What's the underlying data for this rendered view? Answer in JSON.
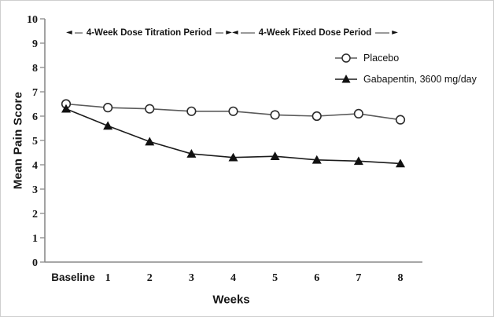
{
  "figure": {
    "background_color": "#ffffff",
    "border_color": "#cfcfcf"
  },
  "chart_data": {
    "type": "line",
    "title": "",
    "xlabel": "Weeks",
    "ylabel": "Mean Pain Score",
    "x_categories": [
      "Baseline",
      "1",
      "2",
      "3",
      "4",
      "5",
      "6",
      "7",
      "8"
    ],
    "ylim": [
      0,
      10
    ],
    "ytick_interval": 1,
    "ytick_labels": [
      "0",
      "1",
      "2",
      "3",
      "4",
      "5",
      "6",
      "7",
      "8",
      "9",
      "10"
    ],
    "grid": false,
    "legend_position": "upper-right",
    "axis_color": "#8a8a8a",
    "text_color": "#161616",
    "series": [
      {
        "name": "Placebo",
        "marker": "open-circle",
        "line_color": "#5a5a5a",
        "marker_fill": "#ffffff",
        "marker_stroke": "#2b2b2b",
        "values": [
          6.5,
          6.35,
          6.3,
          6.2,
          6.2,
          6.05,
          6.0,
          6.1,
          5.85
        ]
      },
      {
        "name": "Gabapentin, 3600 mg/day",
        "marker": "filled-triangle",
        "line_color": "#1c1c1c",
        "marker_fill": "#111111",
        "marker_stroke": "#111111",
        "values": [
          6.3,
          5.6,
          4.95,
          4.45,
          4.3,
          4.35,
          4.2,
          4.15,
          4.05
        ]
      }
    ],
    "annotations": [
      {
        "label": "4-Week Dose Titration Period",
        "arrow": "double-headed",
        "from_category": "Baseline",
        "to_category": "4",
        "y_position": 9.4
      },
      {
        "label": "4-Week Fixed Dose Period",
        "arrow": "double-headed",
        "from_category": "4",
        "to_category": "8",
        "y_position": 9.4
      }
    ]
  }
}
